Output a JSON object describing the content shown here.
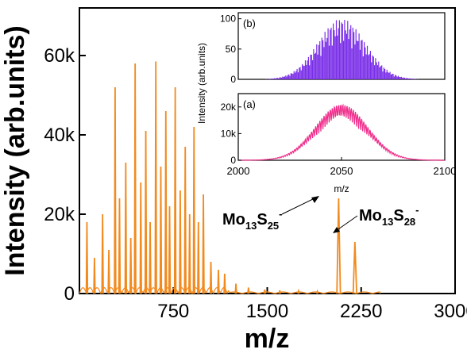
{
  "chart_data": [
    {
      "id": "main",
      "type": "line",
      "xlabel": "m/z",
      "ylabel": "Intensity (arb.units)",
      "xlim": [
        0,
        3000
      ],
      "ylim": [
        0,
        72000
      ],
      "xticks": [
        750,
        1500,
        2250,
        3000
      ],
      "xtick_labels": [
        "750",
        "1500",
        "2250",
        "3000"
      ],
      "yticks": [
        0,
        20000,
        40000,
        60000
      ],
      "ytick_labels": [
        "0",
        "20k",
        "40k",
        "60k"
      ],
      "grid": false,
      "color": "#f28a1e",
      "series": [
        {
          "peaks": [
            {
              "x": 60,
              "y": 18000
            },
            {
              "x": 120,
              "y": 9000
            },
            {
              "x": 185,
              "y": 20000
            },
            {
              "x": 235,
              "y": 11000
            },
            {
              "x": 285,
              "y": 52000
            },
            {
              "x": 320,
              "y": 24000
            },
            {
              "x": 370,
              "y": 33000
            },
            {
              "x": 410,
              "y": 14000
            },
            {
              "x": 445,
              "y": 58000
            },
            {
              "x": 490,
              "y": 28000
            },
            {
              "x": 530,
              "y": 41000
            },
            {
              "x": 565,
              "y": 18000
            },
            {
              "x": 610,
              "y": 58500
            },
            {
              "x": 650,
              "y": 32000
            },
            {
              "x": 690,
              "y": 46000
            },
            {
              "x": 720,
              "y": 22000
            },
            {
              "x": 765,
              "y": 52000
            },
            {
              "x": 805,
              "y": 26000
            },
            {
              "x": 845,
              "y": 37000
            },
            {
              "x": 880,
              "y": 20000
            },
            {
              "x": 915,
              "y": 42000
            },
            {
              "x": 950,
              "y": 18000
            },
            {
              "x": 990,
              "y": 25000
            },
            {
              "x": 1050,
              "y": 8000
            },
            {
              "x": 1110,
              "y": 6000
            },
            {
              "x": 1160,
              "y": 5000
            },
            {
              "x": 1250,
              "y": 2500
            },
            {
              "x": 1350,
              "y": 1500
            },
            {
              "x": 1480,
              "y": 1000
            },
            {
              "x": 1600,
              "y": 800
            },
            {
              "x": 1750,
              "y": 600
            },
            {
              "x": 1900,
              "y": 500
            },
            {
              "x": 2070,
              "y": 24000
            },
            {
              "x": 2200,
              "y": 13000
            }
          ]
        }
      ],
      "annotations": [
        {
          "base": "Mo",
          "sub1": "13",
          "mid": "S",
          "sub2": "25",
          "sup": "-",
          "points_to_x": 2070
        },
        {
          "base": "Mo",
          "sub1": "13",
          "mid": "S",
          "sub2": "28",
          "sup": "-",
          "points_to_x": 2200
        }
      ]
    },
    {
      "id": "inset_b",
      "type": "bar",
      "panel_label": "(b)",
      "color": "#7a2ee8",
      "xlim": [
        2000,
        2100
      ],
      "ylim": [
        0,
        110
      ],
      "yticks": [
        0,
        50,
        100
      ],
      "ytick_labels": [
        "0",
        "50",
        "100"
      ],
      "envelope": {
        "center": 2050,
        "sigma": 11.5,
        "peak": 100
      }
    },
    {
      "id": "inset_a",
      "type": "line",
      "panel_label": "(a)",
      "color": "#ef2f8c",
      "xlim": [
        2000,
        2100
      ],
      "ylim": [
        0,
        25000
      ],
      "xticks": [
        2000,
        2050,
        2100
      ],
      "xtick_labels": [
        "2000",
        "2050",
        "2100"
      ],
      "yticks": [
        0,
        10000,
        20000
      ],
      "ytick_labels": [
        "0",
        "10k",
        "20k"
      ],
      "ylabel": "Intensity (arb.units)",
      "xlabel": "m/z",
      "envelope": {
        "center": 2050,
        "sigma": 12.5,
        "peak": 21000
      }
    }
  ]
}
